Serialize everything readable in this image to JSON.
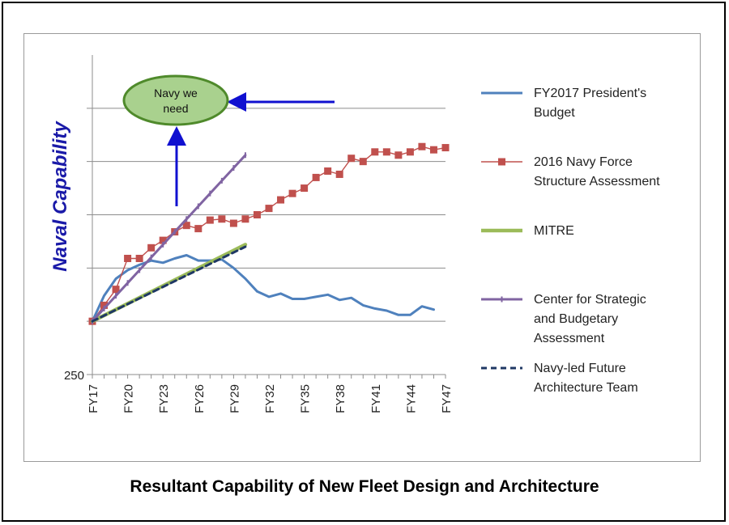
{
  "caption": "Resultant Capability of New Fleet Design and Architecture",
  "chart_data": {
    "type": "line",
    "ylabel": "Naval Capability",
    "y_tick_labels": [
      {
        "value": 250,
        "label": "250"
      }
    ],
    "ylim": [
      250,
      550
    ],
    "x_tick_labels": [
      "FY17",
      "FY20",
      "FY23",
      "FY26",
      "FY29",
      "FY32",
      "FY35",
      "FY38",
      "FY41",
      "FY44",
      "FY47"
    ],
    "xlim": [
      2017,
      2047
    ],
    "grid": true,
    "legend_position": "right",
    "annotation": {
      "text_line1": "Navy we",
      "text_line2": "need"
    },
    "series": [
      {
        "name": "FY2017 President's Budget",
        "color": "#4f81bd",
        "marker": "none",
        "dash": "solid",
        "x": [
          2017,
          2018,
          2019,
          2020,
          2021,
          2022,
          2023,
          2024,
          2025,
          2026,
          2027,
          2028,
          2029,
          2030,
          2031,
          2032,
          2033,
          2034,
          2035,
          2036,
          2037,
          2038,
          2039,
          2040,
          2041,
          2042,
          2043,
          2044,
          2045,
          2046
        ],
        "y": [
          300,
          324,
          340,
          348,
          353,
          357,
          355,
          359,
          362,
          357,
          357,
          358,
          350,
          340,
          328,
          323,
          326,
          321,
          321,
          323,
          325,
          320,
          322,
          315,
          312,
          310,
          306,
          306,
          314,
          311
        ]
      },
      {
        "name": "2016 Navy Force Structure Assessment",
        "color": "#c0504d",
        "marker": "square",
        "dash": "solid",
        "x": [
          2017,
          2018,
          2019,
          2020,
          2021,
          2022,
          2023,
          2024,
          2025,
          2026,
          2027,
          2028,
          2029,
          2030,
          2031,
          2032,
          2033,
          2034,
          2035,
          2036,
          2037,
          2038,
          2039,
          2040,
          2041,
          2042,
          2043,
          2044,
          2045,
          2046,
          2047
        ],
        "y": [
          300,
          315,
          330,
          359,
          359,
          369,
          376,
          384,
          390,
          387,
          395,
          396,
          392,
          396,
          400,
          406,
          414,
          420,
          425,
          435,
          441,
          438,
          453,
          450,
          459,
          459,
          456,
          459,
          464,
          461,
          463
        ]
      },
      {
        "name": "MITRE",
        "color": "#9bbb59",
        "marker": "none",
        "dash": "solid",
        "x": [
          2017,
          2030
        ],
        "y": [
          300,
          372
        ]
      },
      {
        "name": "Center for Strategic and Budgetary Assessment",
        "color": "#8064a2",
        "marker": "tick",
        "dash": "solid",
        "x": [
          2017,
          2018,
          2019,
          2020,
          2021,
          2022,
          2023,
          2024,
          2025,
          2026,
          2027,
          2028,
          2029,
          2030
        ],
        "y": [
          300,
          312,
          324,
          336,
          348,
          360,
          372,
          384,
          396,
          408,
          420,
          432,
          444,
          456
        ]
      },
      {
        "name": "Navy-led Future Architecture Team",
        "color": "#1f3864",
        "marker": "none",
        "dash": "dashed",
        "x": [
          2017,
          2030
        ],
        "y": [
          300,
          370
        ]
      }
    ],
    "legend": [
      {
        "lines": [
          "FY2017 President's",
          "Budget"
        ]
      },
      {
        "lines": [
          "2016 Navy Force",
          "Structure Assessment"
        ]
      },
      {
        "lines": [
          "MITRE"
        ]
      },
      {
        "lines": [
          "Center for Strategic",
          "and Budgetary",
          "Assessment"
        ]
      },
      {
        "lines": [
          "Navy-led Future",
          "Architecture Team"
        ]
      }
    ]
  }
}
